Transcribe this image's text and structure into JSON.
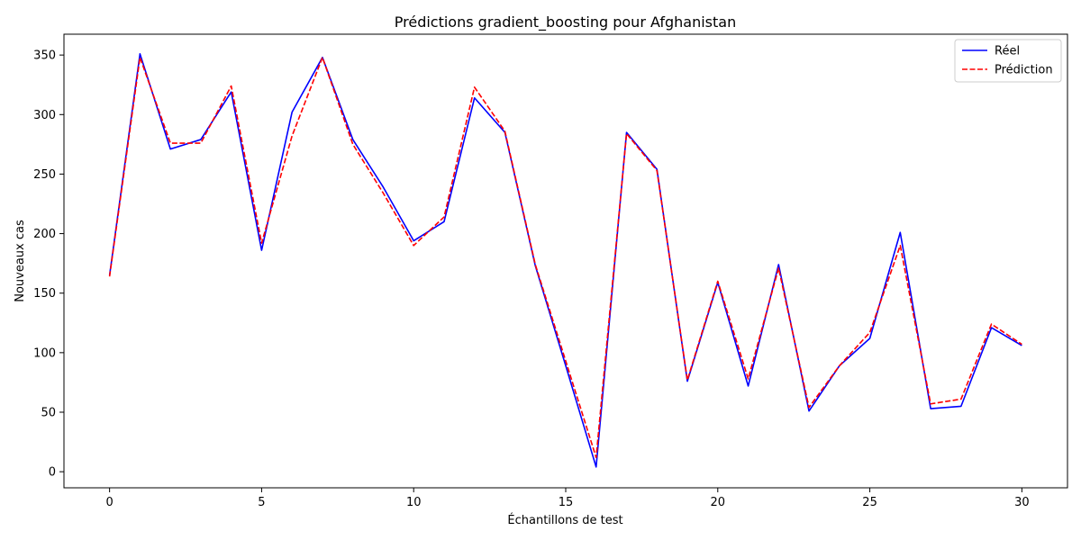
{
  "chart_data": {
    "type": "line",
    "title": "Prédictions gradient_boosting pour Afghanistan",
    "xlabel": "Échantillons de test",
    "ylabel": "Nouveaux cas",
    "xlim": [
      -1.5,
      31.5
    ],
    "ylim": [
      -13.5,
      367.5
    ],
    "x_ticks": [
      0,
      5,
      10,
      15,
      20,
      25,
      30
    ],
    "y_ticks": [
      0,
      50,
      100,
      150,
      200,
      250,
      300,
      350
    ],
    "grid": false,
    "legend_position": "top-right",
    "x": [
      0,
      1,
      2,
      3,
      4,
      5,
      6,
      7,
      8,
      9,
      10,
      11,
      12,
      13,
      14,
      15,
      16,
      17,
      18,
      19,
      20,
      21,
      22,
      23,
      24,
      25,
      26,
      27,
      28,
      29,
      30
    ],
    "series": [
      {
        "name": "Réel",
        "color": "#0000ff",
        "dash": "solid",
        "values": [
          165,
          351,
          271,
          279,
          319,
          186,
          302,
          348,
          279,
          239,
          194,
          210,
          314,
          285,
          173,
          89,
          4,
          285,
          254,
          76,
          159,
          72,
          174,
          51,
          89,
          112,
          201,
          53,
          55,
          121,
          106
        ]
      },
      {
        "name": "Prédiction",
        "color": "#ff0000",
        "dash": "dashed",
        "values": [
          164,
          348,
          276,
          276,
          324,
          192,
          282,
          348,
          275,
          234,
          190,
          214,
          323,
          286,
          174,
          93,
          12,
          284,
          253,
          77,
          160,
          78,
          171,
          54,
          89,
          117,
          190,
          57,
          61,
          124,
          107
        ]
      }
    ]
  }
}
